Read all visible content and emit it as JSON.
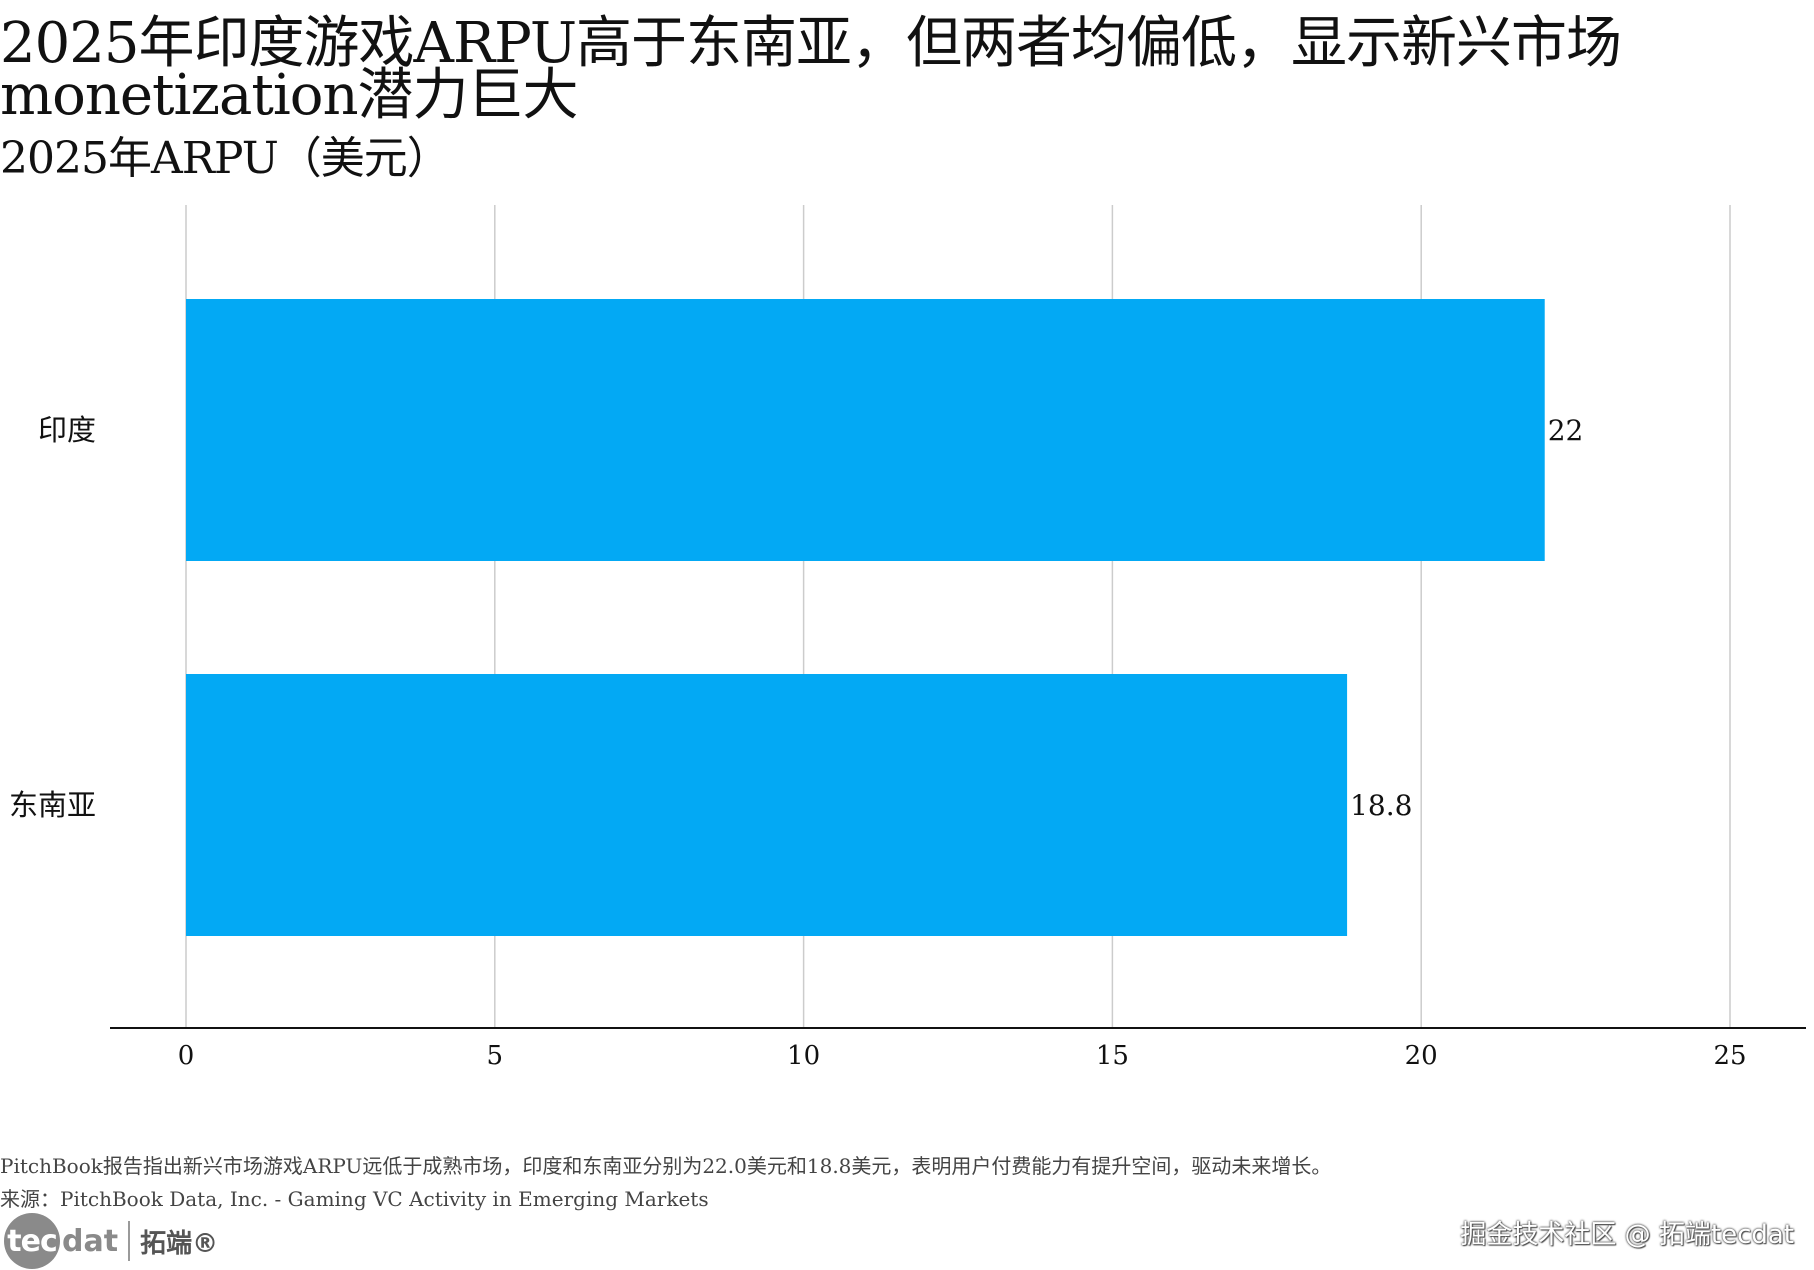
{
  "header": {
    "title": "2025年印度游戏ARPU高于东南亚，但两者均偏低，显示新兴市场\nmonetization潜力巨大",
    "subtitle": "2025年ARPU（美元）"
  },
  "chart_data": {
    "type": "bar",
    "orientation": "horizontal",
    "categories": [
      "印度",
      "东南亚"
    ],
    "values": [
      22,
      18.8
    ],
    "value_labels": [
      "22",
      "18.8"
    ],
    "xlim": [
      0,
      25
    ],
    "x_ticks": [
      0,
      5,
      10,
      15,
      20,
      25
    ],
    "x_tick_labels": [
      "0",
      "5",
      "10",
      "15",
      "20",
      "25"
    ],
    "grid": "vertical",
    "bar_color": "#03a9f4",
    "grid_color": "#cccccc"
  },
  "footer": {
    "note": "PitchBook报告指出新兴市场游戏ARPU远低于成熟市场，印度和东南亚分别为22.0美元和18.8美元，表明用户付费能力有提升空间，驱动未来增长。",
    "source": "来源：PitchBook Data, Inc. - Gaming VC Activity in Emerging Markets"
  },
  "branding": {
    "logo_circle_text": "tec",
    "logo_text": "dat",
    "logo_brand": "拓端®",
    "watermark": "掘金技术社区 @ 拓端tecdat"
  }
}
